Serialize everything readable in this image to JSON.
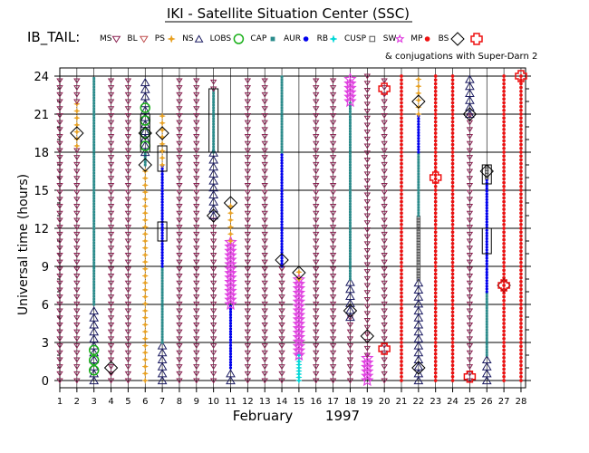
{
  "header": {
    "title": "IKI - Satellite Situation Center (SSC)",
    "group_label": "IB_TAIL:",
    "conj_note": "& conjugations with Super-Darn 2"
  },
  "legend": [
    {
      "label": "MS",
      "marker": "tri-down",
      "color": "#8b2252"
    },
    {
      "label": "BL",
      "marker": "tri-down",
      "color": "#c05050"
    },
    {
      "label": "PS",
      "marker": "star4",
      "color": "#e8a020"
    },
    {
      "label": "NS",
      "marker": "tri-up",
      "color": "#1a1a60"
    },
    {
      "label": "LOBS",
      "marker": "circle",
      "color": "#1ab01a"
    },
    {
      "label": "CAP",
      "marker": "square",
      "color": "#2a8c8c"
    },
    {
      "label": "AUR",
      "marker": "dot",
      "color": "#0000ee"
    },
    {
      "label": "RB",
      "marker": "star4",
      "color": "#00d8d8"
    },
    {
      "label": "CUSP",
      "marker": "square-open",
      "color": "#555555"
    },
    {
      "label": "SW",
      "marker": "star5",
      "color": "#e040e0"
    },
    {
      "label": "MP",
      "marker": "dot",
      "color": "#ee1111"
    },
    {
      "label": "BS",
      "marker": "diamond",
      "color": "#000000"
    },
    {
      "label": "",
      "marker": "cross",
      "color": "#ee1111"
    }
  ],
  "colors": {
    "MS": "#8b2252",
    "BL": "#c05050",
    "PS": "#e8a020",
    "NS": "#1a1a60",
    "LOBS": "#1ab01a",
    "CAP": "#2a8c8c",
    "AUR": "#0000ee",
    "RB": "#00d8d8",
    "CUSP": "#555555",
    "SW": "#e040e0",
    "MP": "#ee1111",
    "BS": "#000000",
    "CONJ": "#ee1111"
  },
  "chart_data": {
    "type": "scatter",
    "title": "IKI - Satellite Situation Center (SSC)",
    "xlabel": "February",
    "xlabel_year": "1997",
    "ylabel": "Universal time (hours)",
    "xlim": [
      1,
      28
    ],
    "ylim": [
      0,
      24
    ],
    "xticks": [
      1,
      2,
      3,
      4,
      5,
      6,
      7,
      8,
      9,
      10,
      11,
      12,
      13,
      14,
      15,
      16,
      17,
      18,
      19,
      20,
      21,
      22,
      23,
      24,
      25,
      26,
      27,
      28
    ],
    "yticks": [
      0,
      3,
      6,
      9,
      12,
      15,
      18,
      21,
      24
    ],
    "grid": true,
    "columns": [
      {
        "day": 1,
        "segments": [
          {
            "region": "MS",
            "from": 0,
            "to": 24
          }
        ]
      },
      {
        "day": 2,
        "segments": [
          {
            "region": "MS",
            "from": 0,
            "to": 18.5
          },
          {
            "region": "PS",
            "from": 18.5,
            "to": 22
          },
          {
            "region": "MS",
            "from": 22,
            "to": 24
          }
        ],
        "bs": [
          19.5
        ]
      },
      {
        "day": 3,
        "segments": [
          {
            "region": "NS",
            "from": 0,
            "to": 6
          },
          {
            "region": "CAP",
            "from": 6,
            "to": 24
          }
        ],
        "lobs": [
          0.8,
          1.6,
          2.4
        ]
      },
      {
        "day": 4,
        "segments": [
          {
            "region": "MS",
            "from": 0,
            "to": 24
          }
        ],
        "bs": [
          1
        ]
      },
      {
        "day": 5,
        "segments": [
          {
            "region": "MS",
            "from": 0,
            "to": 24
          }
        ]
      },
      {
        "day": 6,
        "segments": [
          {
            "region": "PS",
            "from": 0,
            "to": 17
          },
          {
            "region": "CAP",
            "from": 17,
            "to": 18
          },
          {
            "region": "NS",
            "from": 18,
            "to": 24
          }
        ],
        "lobs": [
          18.5,
          19.5,
          20.5,
          21.5
        ],
        "bs": [
          17,
          19.5
        ],
        "boxes": [
          [
            18,
            21
          ]
        ]
      },
      {
        "day": 7,
        "segments": [
          {
            "region": "NS",
            "from": 0,
            "to": 3
          },
          {
            "region": "CAP",
            "from": 3,
            "to": 9
          },
          {
            "region": "AUR",
            "from": 9,
            "to": 17
          },
          {
            "region": "PS",
            "from": 17,
            "to": 21
          }
        ],
        "bs": [
          19.5
        ],
        "boxes": [
          [
            11,
            12.5
          ],
          [
            16.5,
            18.5
          ]
        ]
      },
      {
        "day": 8,
        "segments": [
          {
            "region": "MS",
            "from": 0,
            "to": 24
          }
        ]
      },
      {
        "day": 9,
        "segments": [
          {
            "region": "MS",
            "from": 0,
            "to": 24
          }
        ]
      },
      {
        "day": 10,
        "segments": [
          {
            "region": "MS",
            "from": 0,
            "to": 13
          },
          {
            "region": "NS",
            "from": 13,
            "to": 18
          },
          {
            "region": "CAP",
            "from": 18,
            "to": 23
          },
          {
            "region": "MS",
            "from": 23,
            "to": 24
          }
        ],
        "bs": [
          13
        ],
        "boxes": [
          [
            18,
            23
          ]
        ]
      },
      {
        "day": 11,
        "segments": [
          {
            "region": "NS",
            "from": 0,
            "to": 1
          },
          {
            "region": "AUR",
            "from": 1,
            "to": 6
          },
          {
            "region": "SW",
            "from": 6,
            "to": 11
          },
          {
            "region": "PS",
            "from": 11,
            "to": 14
          }
        ],
        "bs": [
          14
        ]
      },
      {
        "day": 12,
        "segments": [
          {
            "region": "MS",
            "from": 0,
            "to": 24
          }
        ]
      },
      {
        "day": 13,
        "segments": [
          {
            "region": "MS",
            "from": 0,
            "to": 24
          }
        ]
      },
      {
        "day": 14,
        "segments": [
          {
            "region": "MS",
            "from": 0,
            "to": 9
          },
          {
            "region": "AUR",
            "from": 9,
            "to": 18
          },
          {
            "region": "CAP",
            "from": 18,
            "to": 24
          }
        ],
        "bs": [
          9.5
        ]
      },
      {
        "day": 15,
        "segments": [
          {
            "region": "RB",
            "from": 0,
            "to": 2
          },
          {
            "region": "SW",
            "from": 2,
            "to": 8
          },
          {
            "region": "PS",
            "from": 8,
            "to": 9
          }
        ],
        "bs": [
          8.5
        ]
      },
      {
        "day": 16,
        "segments": [
          {
            "region": "MS",
            "from": 0,
            "to": 24
          }
        ]
      },
      {
        "day": 17,
        "segments": [
          {
            "region": "MS",
            "from": 0,
            "to": 24
          }
        ]
      },
      {
        "day": 18,
        "segments": [
          {
            "region": "MS",
            "from": 0,
            "to": 5
          },
          {
            "region": "NS",
            "from": 5,
            "to": 8
          },
          {
            "region": "CAP",
            "from": 8,
            "to": 22
          },
          {
            "region": "SW",
            "from": 22,
            "to": 24
          }
        ],
        "bs": [
          5.5
        ]
      },
      {
        "day": 19,
        "segments": [
          {
            "region": "SW",
            "from": 0,
            "to": 2
          },
          {
            "region": "MS",
            "from": 2,
            "to": 24
          }
        ],
        "bs": [
          3.5
        ]
      },
      {
        "day": 20,
        "segments": [
          {
            "region": "MS",
            "from": 0,
            "to": 24
          }
        ],
        "conj": [
          2.5,
          23
        ]
      },
      {
        "day": 21,
        "segments": [
          {
            "region": "MP",
            "from": 0,
            "to": 24
          }
        ]
      },
      {
        "day": 22,
        "segments": [
          {
            "region": "NS",
            "from": 0,
            "to": 8
          },
          {
            "region": "CUSP",
            "from": 8,
            "to": 13
          },
          {
            "region": "CAP",
            "from": 13,
            "to": 18
          },
          {
            "region": "AUR",
            "from": 18,
            "to": 21
          },
          {
            "region": "PS",
            "from": 21,
            "to": 24
          }
        ],
        "bs": [
          1,
          22
        ]
      },
      {
        "day": 23,
        "segments": [
          {
            "region": "MP",
            "from": 0,
            "to": 24
          }
        ],
        "conj": [
          16
        ]
      },
      {
        "day": 24,
        "segments": [
          {
            "region": "MP",
            "from": 0,
            "to": 24
          }
        ]
      },
      {
        "day": 25,
        "segments": [
          {
            "region": "MS",
            "from": 0,
            "to": 21
          },
          {
            "region": "NS",
            "from": 21,
            "to": 24
          }
        ],
        "bs": [
          21
        ],
        "conj": [
          0.3
        ]
      },
      {
        "day": 26,
        "segments": [
          {
            "region": "NS",
            "from": 0,
            "to": 2
          },
          {
            "region": "CAP",
            "from": 2,
            "to": 7
          },
          {
            "region": "AUR",
            "from": 7,
            "to": 16
          },
          {
            "region": "CUSP",
            "from": 16,
            "to": 17
          }
        ],
        "bs": [
          16.5
        ],
        "boxes": [
          [
            10,
            12
          ],
          [
            15.5,
            17
          ]
        ]
      },
      {
        "day": 27,
        "segments": [
          {
            "region": "MP",
            "from": 0,
            "to": 24
          }
        ],
        "bs": [
          7.5
        ],
        "conj": [
          7.5
        ]
      },
      {
        "day": 28,
        "segments": [
          {
            "region": "MP",
            "from": 0,
            "to": 24
          }
        ],
        "conj": [
          24
        ]
      }
    ]
  }
}
